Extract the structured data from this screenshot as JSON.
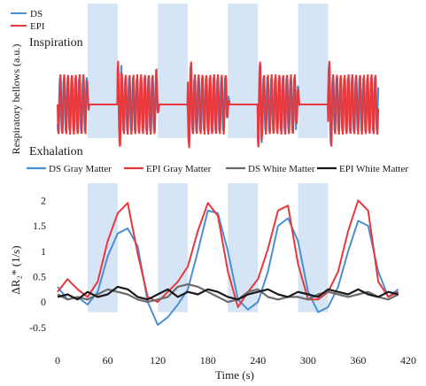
{
  "chart_data": [
    {
      "type": "line",
      "title": "",
      "ylabel": "Respiratory bellows (a.u.)",
      "annotations": {
        "top": "Inspiration",
        "bottom": "Exhalation"
      },
      "legend": {
        "placement": "top-left",
        "entries": [
          "DS",
          "EPI"
        ]
      },
      "series": [
        {
          "name": "DS",
          "color": "#4a8fd4"
        },
        {
          "name": "EPI",
          "color": "#e8383c"
        }
      ],
      "breath_hold_blocks_s": [
        [
          36,
          72
        ],
        [
          120,
          156
        ],
        [
          204,
          240
        ],
        [
          288,
          324
        ]
      ],
      "x_range_s": [
        0,
        384
      ],
      "tick_labels": []
    },
    {
      "type": "line",
      "title": "",
      "xlabel": "Time (s)",
      "ylabel": "ΔR₂* (1/s)",
      "xlim": [
        0,
        420
      ],
      "ylim": [
        -0.8,
        2.2
      ],
      "xticks": [
        0,
        60,
        120,
        180,
        240,
        300,
        360,
        420
      ],
      "xtick_labels": [
        "0",
        "60",
        "120",
        "180",
        "240",
        "300",
        "360",
        "420"
      ],
      "yticks": [
        -0.5,
        0,
        0.5,
        1,
        1.5,
        2
      ],
      "ytick_labels": [
        "-0.5",
        "0",
        "0.5",
        "1",
        "1.5",
        "2"
      ],
      "grid": false,
      "legend": {
        "placement": "top",
        "entries": [
          "DS Gray Matter",
          "EPI Gray Matter",
          "DS White Matter",
          "EPI White Matter"
        ]
      },
      "shaded_blocks_s": [
        [
          36,
          72
        ],
        [
          120,
          156
        ],
        [
          204,
          240
        ],
        [
          288,
          324
        ]
      ],
      "series": [
        {
          "name": "DS Gray Matter",
          "color": "#4a8fd4",
          "x": [
            0,
            12,
            24,
            36,
            48,
            60,
            72,
            84,
            96,
            108,
            120,
            132,
            144,
            156,
            168,
            180,
            192,
            204,
            216,
            228,
            240,
            252,
            264,
            276,
            288,
            300,
            312,
            324,
            336,
            348,
            360,
            372,
            384,
            396,
            408
          ],
          "y": [
            0.3,
            0.05,
            0.1,
            -0.05,
            0.2,
            0.9,
            1.35,
            1.45,
            1.1,
            0.0,
            -0.45,
            -0.3,
            -0.05,
            0.25,
            1.0,
            1.8,
            1.75,
            1.0,
            0.05,
            -0.15,
            0.0,
            0.6,
            1.5,
            1.65,
            1.2,
            0.2,
            -0.2,
            -0.1,
            0.3,
            1.0,
            1.6,
            1.5,
            0.6,
            0.1,
            0.25
          ]
        },
        {
          "name": "EPI Gray Matter",
          "color": "#e8383c",
          "x": [
            0,
            12,
            24,
            36,
            48,
            60,
            72,
            84,
            96,
            108,
            120,
            132,
            144,
            156,
            168,
            180,
            192,
            204,
            216,
            228,
            240,
            252,
            264,
            276,
            288,
            300,
            312,
            324,
            336,
            348,
            360,
            372,
            384,
            396,
            408
          ],
          "y": [
            0.2,
            0.45,
            0.25,
            0.1,
            0.4,
            1.2,
            1.75,
            1.95,
            0.95,
            0.1,
            0.0,
            0.2,
            0.4,
            0.7,
            1.4,
            1.95,
            1.7,
            0.6,
            -0.1,
            0.2,
            0.45,
            1.05,
            1.8,
            1.9,
            0.75,
            0.05,
            0.05,
            0.2,
            0.6,
            1.4,
            2.0,
            1.8,
            0.4,
            0.1,
            0.2
          ]
        },
        {
          "name": "DS White Matter",
          "color": "#6b6b6b",
          "x": [
            0,
            12,
            24,
            36,
            48,
            60,
            72,
            84,
            96,
            108,
            120,
            132,
            144,
            156,
            168,
            180,
            192,
            204,
            216,
            228,
            240,
            252,
            264,
            276,
            288,
            300,
            312,
            324,
            336,
            348,
            360,
            372,
            384,
            396,
            408
          ],
          "y": [
            0.15,
            0.05,
            0.1,
            0.05,
            0.15,
            0.25,
            0.2,
            0.15,
            0.05,
            0.0,
            0.05,
            0.1,
            0.3,
            0.35,
            0.3,
            0.2,
            0.1,
            0.0,
            0.05,
            0.2,
            0.25,
            0.1,
            0.05,
            0.1,
            0.1,
            0.05,
            0.15,
            0.2,
            0.15,
            0.1,
            0.15,
            0.2,
            0.1,
            0.05,
            0.15
          ]
        },
        {
          "name": "EPI White Matter",
          "color": "#1a1a1a",
          "x": [
            0,
            12,
            24,
            36,
            48,
            60,
            72,
            84,
            96,
            108,
            120,
            132,
            144,
            156,
            168,
            180,
            192,
            204,
            216,
            228,
            240,
            252,
            264,
            276,
            288,
            300,
            312,
            324,
            336,
            348,
            360,
            372,
            384,
            396,
            408
          ],
          "y": [
            0.1,
            0.15,
            0.05,
            0.2,
            0.1,
            0.15,
            0.3,
            0.25,
            0.1,
            0.05,
            0.15,
            0.25,
            0.1,
            0.2,
            0.15,
            0.25,
            0.2,
            0.1,
            0.05,
            0.15,
            0.2,
            0.25,
            0.15,
            0.1,
            0.2,
            0.15,
            0.1,
            0.25,
            0.2,
            0.15,
            0.25,
            0.15,
            0.1,
            0.2,
            0.15
          ]
        }
      ]
    }
  ]
}
